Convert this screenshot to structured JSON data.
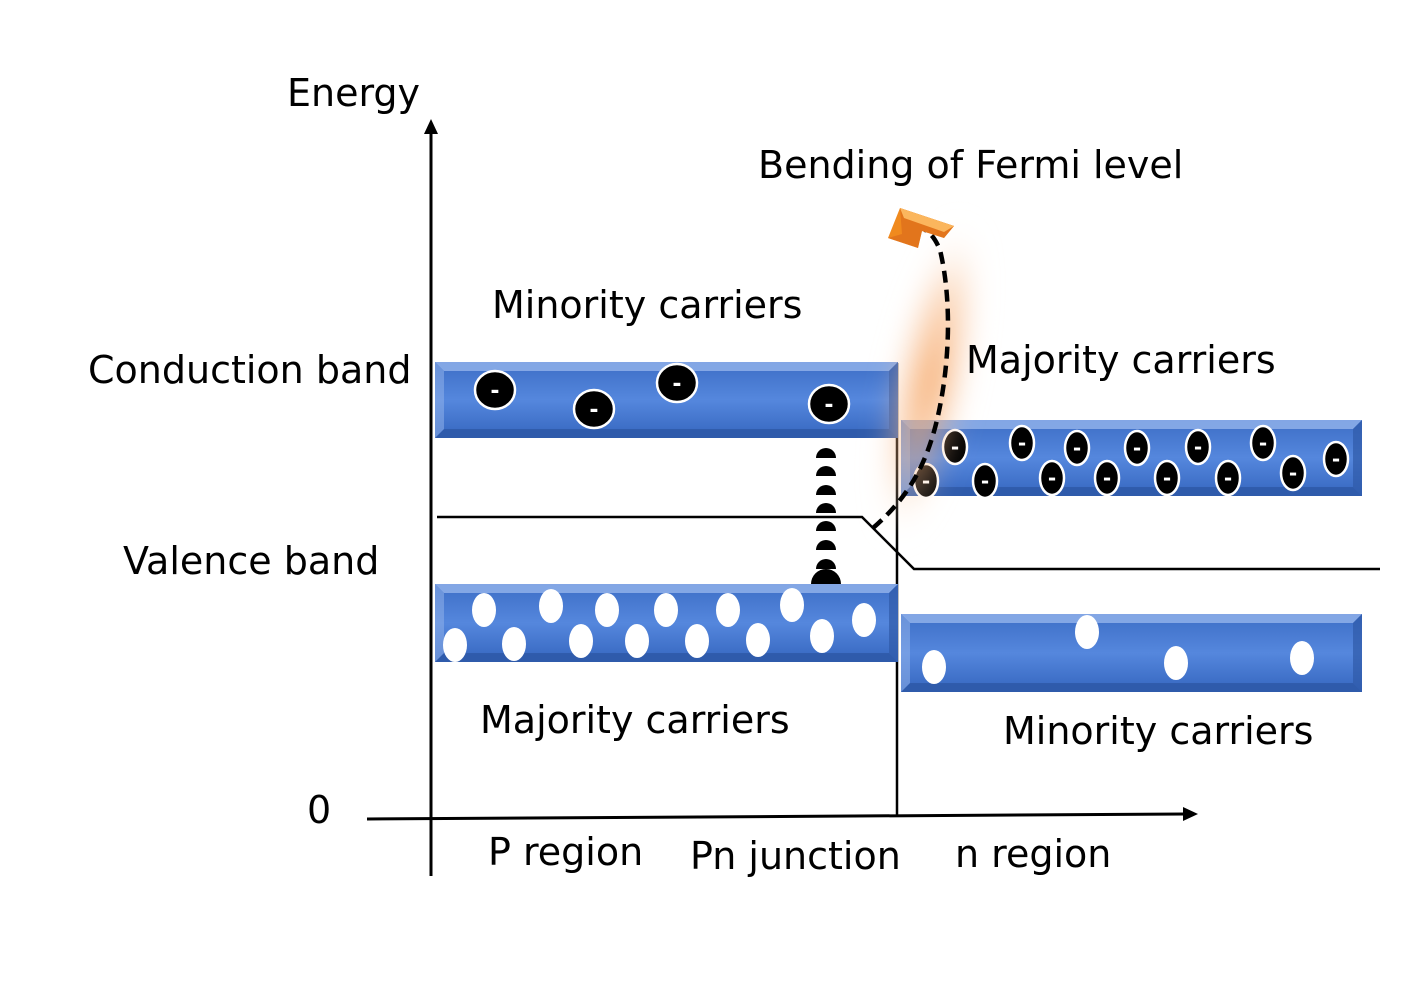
{
  "labels": {
    "energy": "Energy",
    "origin": "0",
    "bending": "Bending of Fermi level",
    "conduction_band": "Conduction band",
    "valence_band": "Valence band",
    "p_minority": "Minority carriers",
    "p_majority": "Majority carriers",
    "n_majority": "Majority carriers",
    "n_minority": "Minority carriers",
    "p_region": "P region",
    "pn_junction": "Pn junction",
    "n_region": "n region"
  },
  "electron_symbol": "-",
  "colors": {
    "band_fill": "#4a7bd0",
    "band_dark": "#2f5aa8",
    "band_light": "#8fb0ea",
    "electron": "#000000",
    "hole": "#ffffff",
    "arrow_orange": "#f08a1e",
    "glow": "#f7a869"
  },
  "bands": [
    {
      "id": "p-conduction",
      "region": "P",
      "type": "conduction"
    },
    {
      "id": "p-valence",
      "region": "P",
      "type": "valence"
    },
    {
      "id": "n-conduction",
      "region": "n",
      "type": "conduction"
    },
    {
      "id": "n-valence",
      "region": "n",
      "type": "valence"
    }
  ]
}
